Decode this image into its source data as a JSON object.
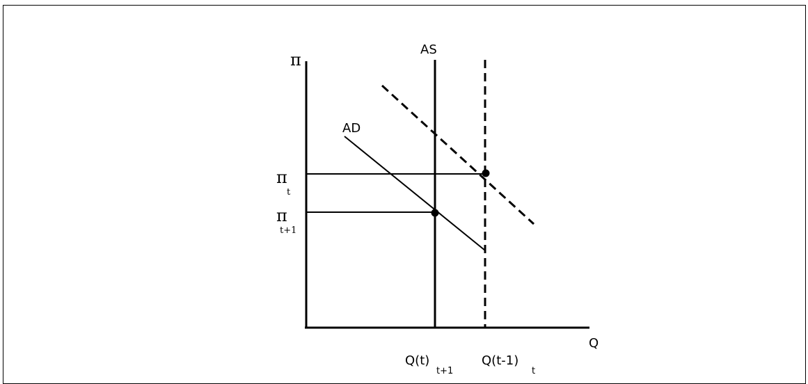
{
  "diagram": {
    "y_axis_label": "π",
    "x_axis_label": "Q",
    "as_label": "AS",
    "ad_label": "AD",
    "pi_t_label": "π",
    "pi_t_sub": "t",
    "pi_t1_label": "π",
    "pi_t1_sub": "t+1",
    "q_t_label": "Q(t)",
    "q_t_sub": "t+1",
    "q_t1_label": "Q(t-1)",
    "q_t1_sub": "t"
  }
}
